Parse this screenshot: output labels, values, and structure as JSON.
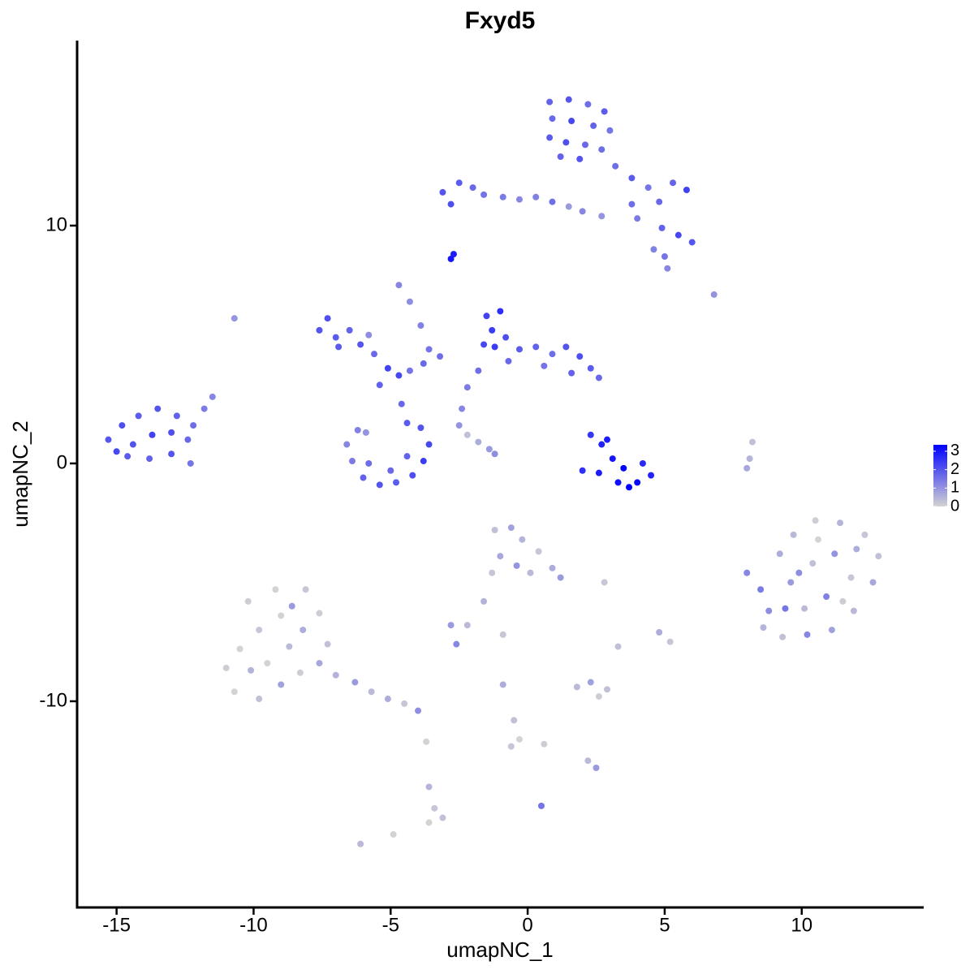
{
  "chart_data": {
    "type": "scatter",
    "title": "Fxyd5",
    "xlabel": "umapNC_1",
    "ylabel": "umapNC_2",
    "xlim": [
      -16.44,
      14.45
    ],
    "ylim": [
      -18.67,
      17.78
    ],
    "xticks": [
      -15,
      -10,
      -5,
      0,
      5,
      10
    ],
    "yticks": [
      -10,
      0,
      10
    ],
    "colors": [
      "#d3d3d3",
      "#0000ff"
    ],
    "colorlim": [
      0,
      3.35
    ],
    "colorticks": [
      0,
      1,
      2,
      3
    ],
    "x": [
      0.8,
      1.5,
      2.2,
      2.8,
      0.9,
      1.6,
      2.4,
      3.0,
      0.8,
      1.4,
      2.1,
      2.7,
      1.2,
      1.9,
      3.2,
      3.8,
      4.4,
      5.3,
      5.8,
      4.8,
      4.0,
      4.9,
      5.5,
      6.0,
      4.6,
      5.0,
      5.1,
      3.8,
      -3.1,
      -2.5,
      -2.0,
      -2.8,
      -1.6,
      -0.9,
      -0.3,
      0.3,
      0.9,
      1.5,
      2.0,
      2.7,
      -2.8,
      -2.7,
      6.8,
      -10.7,
      -4.7,
      -4.3,
      -3.9,
      -3.6,
      -15.3,
      -14.8,
      -14.2,
      -13.5,
      -12.8,
      -15.0,
      -14.4,
      -13.7,
      -13.0,
      -12.4,
      -14.6,
      -13.8,
      -13.0,
      -12.3,
      -12.2,
      -11.8,
      -11.5,
      -7.6,
      -7.3,
      -7.0,
      -6.5,
      -6.1,
      -5.6,
      -5.1,
      -4.7,
      -4.3,
      -3.8,
      -3.2,
      -6.9,
      -5.8,
      -5.4,
      -4.6,
      -4.4,
      -6.6,
      -6.4,
      -6.0,
      -5.4,
      -4.8,
      -4.2,
      -3.8,
      -3.6,
      -3.9,
      -5.8,
      -5.0,
      -4.4,
      -6.2,
      -5.9,
      -1.5,
      -1.0,
      -1.3,
      -0.8,
      -1.6,
      -0.3,
      0.3,
      0.9,
      1.4,
      1.9,
      2.3,
      2.6,
      1.6,
      0.6,
      -0.7,
      -1.8,
      -2.2,
      -2.4,
      -2.5,
      -1.2,
      -2.2,
      -1.8,
      -1.4,
      -1.2,
      8.1,
      8.0,
      8.2,
      2.3,
      2.7,
      3.1,
      3.5,
      4.0,
      3.3,
      2.6,
      2.0,
      4.5,
      4.2,
      3.7,
      2.9,
      8.0,
      8.5,
      8.8,
      8.6,
      9.3,
      10.2,
      11.1,
      11.9,
      12.6,
      12.8,
      12.3,
      11.4,
      10.5,
      9.7,
      9.2,
      9.6,
      10.4,
      11.2,
      11.8,
      10.9,
      10.1,
      9.4,
      10.6,
      12.0,
      11.5,
      9.9,
      -10.2,
      -9.2,
      -8.1,
      -7.6,
      -7.3,
      -8.2,
      -9.0,
      -9.8,
      -10.5,
      -11.0,
      -10.7,
      -9.8,
      -9.0,
      -8.3,
      -7.6,
      -9.5,
      -8.7,
      -7.0,
      -6.3,
      -5.7,
      -5.1,
      -4.5,
      -4.0,
      -8.6,
      -10.1,
      -1.2,
      -0.6,
      -0.2,
      0.4,
      0.9,
      1.2,
      -1.0,
      -0.4,
      -1.3,
      0.1,
      -2.8,
      -2.2,
      -2.6,
      -1.6,
      -0.9,
      2.8,
      3.3,
      4.8,
      5.2,
      1.8,
      2.3,
      2.9,
      2.6,
      -0.9,
      -0.5,
      -0.3,
      -0.6,
      0.6,
      2.2,
      2.5,
      0.5,
      -3.7,
      -3.6,
      -3.4,
      -3.6,
      -3.1,
      -4.9,
      -6.1
    ],
    "y": [
      15.2,
      15.3,
      15.1,
      14.8,
      14.5,
      14.4,
      14.2,
      14.0,
      13.7,
      13.5,
      13.4,
      13.2,
      12.9,
      12.8,
      12.5,
      12.0,
      11.6,
      11.8,
      11.5,
      11.0,
      10.3,
      9.9,
      9.6,
      9.3,
      9.0,
      8.7,
      8.2,
      10.9,
      11.4,
      11.8,
      11.6,
      10.9,
      11.3,
      11.2,
      11.1,
      11.2,
      11.0,
      10.8,
      10.6,
      10.4,
      8.6,
      8.8,
      7.1,
      6.1,
      7.5,
      6.8,
      5.8,
      4.8,
      1.0,
      1.6,
      2.0,
      2.3,
      2.0,
      0.5,
      0.8,
      1.2,
      1.3,
      1.0,
      0.3,
      0.2,
      0.4,
      0.0,
      1.6,
      2.3,
      2.8,
      5.6,
      6.1,
      5.3,
      5.6,
      5.0,
      4.6,
      4.0,
      3.7,
      3.9,
      4.2,
      4.5,
      4.9,
      5.4,
      3.3,
      2.5,
      1.7,
      0.8,
      0.1,
      -0.6,
      -0.9,
      -0.8,
      -0.5,
      0.1,
      0.8,
      1.5,
      0.0,
      -0.3,
      0.3,
      1.4,
      1.3,
      6.2,
      6.4,
      5.6,
      5.3,
      5.0,
      4.8,
      4.9,
      4.6,
      4.9,
      4.5,
      4.0,
      3.6,
      3.8,
      4.1,
      4.3,
      3.9,
      3.2,
      2.3,
      1.6,
      4.9,
      1.2,
      0.9,
      0.6,
      0.4,
      0.2,
      -0.2,
      0.9,
      1.2,
      0.8,
      0.2,
      -0.2,
      -0.8,
      -0.8,
      -0.4,
      -0.3,
      -0.5,
      0.0,
      -1.0,
      1.0,
      -4.6,
      -5.3,
      -6.2,
      -6.9,
      -7.3,
      -7.2,
      -7.0,
      -6.2,
      -5.0,
      -3.9,
      -3.0,
      -2.5,
      -2.4,
      -3.0,
      -3.8,
      -5.0,
      -4.2,
      -3.8,
      -4.8,
      -5.6,
      -6.1,
      -6.1,
      -3.2,
      -3.6,
      -5.8,
      -4.6,
      -5.8,
      -5.3,
      -5.3,
      -6.3,
      -7.6,
      -7.0,
      -6.4,
      -7.0,
      -7.8,
      -8.6,
      -9.6,
      -9.9,
      -9.3,
      -8.8,
      -8.4,
      -8.4,
      -7.7,
      -8.9,
      -9.2,
      -9.6,
      -9.9,
      -10.1,
      -10.4,
      -6.0,
      -8.7,
      -2.8,
      -2.7,
      -3.2,
      -3.7,
      -4.4,
      -4.8,
      -3.9,
      -4.3,
      -4.6,
      -4.6,
      -6.8,
      -6.8,
      -7.6,
      -5.8,
      -7.2,
      -5.0,
      -7.7,
      -7.1,
      -7.5,
      -9.4,
      -9.2,
      -9.5,
      -9.8,
      -9.3,
      -10.8,
      -11.6,
      -11.9,
      -11.8,
      -12.5,
      -12.8,
      -14.4,
      -11.7,
      -13.6,
      -14.5,
      -15.1,
      -14.9,
      -15.6,
      -16.0
    ],
    "values": [
      1.8,
      2.0,
      1.6,
      1.9,
      1.7,
      2.2,
      1.8,
      1.5,
      1.9,
      2.1,
      1.7,
      1.6,
      1.8,
      2.0,
      1.6,
      1.9,
      1.5,
      1.8,
      2.3,
      1.7,
      1.4,
      1.8,
      2.2,
      2.0,
      1.3,
      1.5,
      1.2,
      1.6,
      2.0,
      1.9,
      1.7,
      2.1,
      1.5,
      1.4,
      1.2,
      1.3,
      1.6,
      0.9,
      1.2,
      1.0,
      3.0,
      2.9,
      1.0,
      1.0,
      1.2,
      1.1,
      1.3,
      1.5,
      2.0,
      2.1,
      1.9,
      2.0,
      1.8,
      2.2,
      2.0,
      2.3,
      2.1,
      1.7,
      1.9,
      1.8,
      2.0,
      1.5,
      1.6,
      1.4,
      1.2,
      2.0,
      2.1,
      1.9,
      1.8,
      2.0,
      1.7,
      2.3,
      2.2,
      1.5,
      1.7,
      1.6,
      1.9,
      1.1,
      1.8,
      1.7,
      1.9,
      1.2,
      1.4,
      1.8,
      2.0,
      1.9,
      2.1,
      2.4,
      2.2,
      2.0,
      1.6,
      1.7,
      1.8,
      1.3,
      1.0,
      2.3,
      2.6,
      2.4,
      2.1,
      2.2,
      1.9,
      1.8,
      1.6,
      2.0,
      2.1,
      1.9,
      1.7,
      1.8,
      1.5,
      1.7,
      1.6,
      1.4,
      1.2,
      1.0,
      2.4,
      0.3,
      0.6,
      0.9,
      1.1,
      0.5,
      0.7,
      0.3,
      2.5,
      2.8,
      3.0,
      3.3,
      3.2,
      3.1,
      2.9,
      2.6,
      2.8,
      2.7,
      3.3,
      2.9,
      1.2,
      1.4,
      1.1,
      0.5,
      0.3,
      1.2,
      0.8,
      0.4,
      0.7,
      0.3,
      0.2,
      0.5,
      0.1,
      0.4,
      0.6,
      0.9,
      0.3,
      1.0,
      0.2,
      1.3,
      0.4,
      1.5,
      0.0,
      0.6,
      0.1,
      1.1,
      0.1,
      0.0,
      0.2,
      0.1,
      0.3,
      0.6,
      0.0,
      0.2,
      0.0,
      0.1,
      0.0,
      0.3,
      0.8,
      0.1,
      0.7,
      0.0,
      0.4,
      0.5,
      0.9,
      0.4,
      0.6,
      0.2,
      1.1,
      0.9,
      0.5,
      0.3,
      0.8,
      0.5,
      0.2,
      0.6,
      0.9,
      0.7,
      1.0,
      0.2,
      0.4,
      0.9,
      0.4,
      1.2,
      0.5,
      0.2,
      0.2,
      0.3,
      0.6,
      0.2,
      0.4,
      0.8,
      0.3,
      0.1,
      0.6,
      0.3,
      0.0,
      0.2,
      0.1,
      0.4,
      0.9,
      1.5,
      0.0,
      0.5,
      0.2,
      0.0,
      0.3,
      0.0,
      0.4
    ]
  }
}
